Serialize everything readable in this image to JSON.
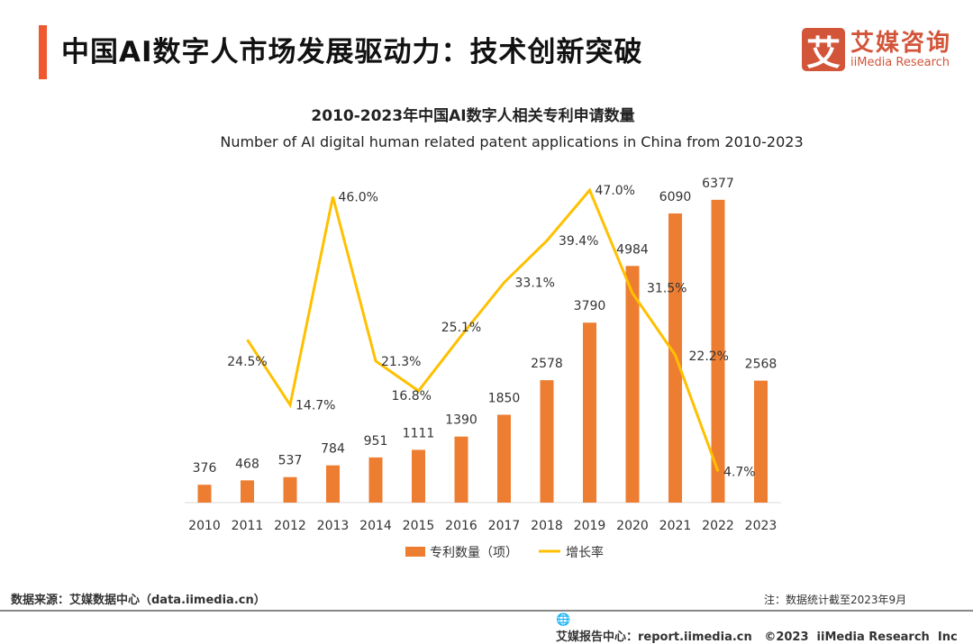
{
  "header": {
    "title": "中国AI数字人市场发展驱动力：技术创新突破",
    "logo_cn": "艾媒咨询",
    "logo_en": "iiMedia Research",
    "logo_mark": "艾"
  },
  "chart_data": {
    "type": "bar+line",
    "title": "2010-2023年中国AI数字人相关专利申请数量",
    "subtitle": "Number of AI digital human related patent applications in China from 2010-2023",
    "categories": [
      "2010",
      "2011",
      "2012",
      "2013",
      "2014",
      "2015",
      "2016",
      "2017",
      "2018",
      "2019",
      "2020",
      "2021",
      "2022",
      "2023"
    ],
    "series": [
      {
        "name": "专利数量（项）",
        "type": "bar",
        "color": "#ED7D31",
        "values": [
          376,
          468,
          537,
          784,
          951,
          1111,
          1390,
          1850,
          2578,
          3790,
          4984,
          6090,
          6377,
          2568
        ]
      },
      {
        "name": "增长率",
        "type": "line",
        "color": "#FFC000",
        "values": [
          null,
          24.5,
          14.7,
          46.0,
          21.3,
          16.8,
          25.1,
          33.1,
          39.4,
          47.0,
          31.5,
          22.2,
          4.7,
          null
        ],
        "labels": [
          "",
          "24.5%",
          "14.7%",
          "46.0%",
          "21.3%",
          "16.8%",
          "25.1%",
          "33.1%",
          "39.4%",
          "47.0%",
          "31.5%",
          "22.2%",
          "4.7%",
          ""
        ]
      }
    ],
    "ylim": [
      0,
      7000
    ],
    "y2lim": [
      0,
      50
    ],
    "grid": false,
    "legend": "bottom"
  },
  "footer": {
    "source": "数据来源：艾媒数据中心（data.iimedia.cn）",
    "note": "注：数据统计截至2023年9月",
    "report": "艾媒报告中心：report.iimedia.cn   ©2023  iiMedia Research  Inc"
  }
}
